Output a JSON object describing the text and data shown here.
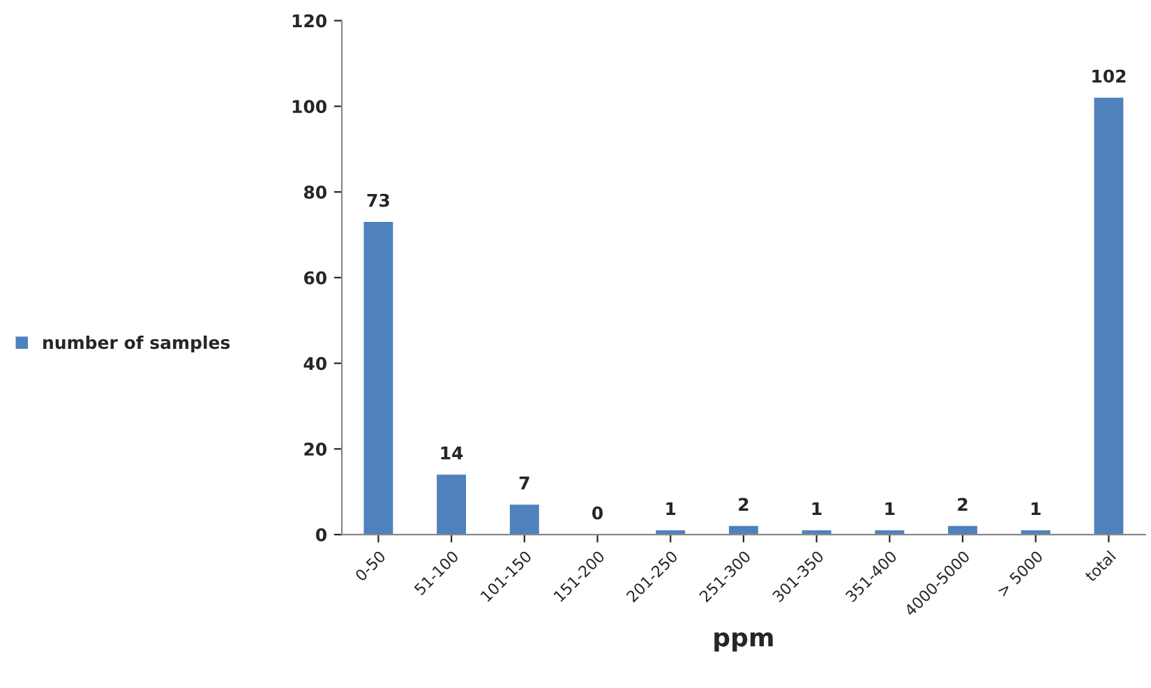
{
  "chart_data": {
    "type": "bar",
    "xlabel": "ppm",
    "categories": [
      "0-50",
      "51-100",
      "101-150",
      "151-200",
      "201-250",
      "251-300",
      "301-350",
      "351-400",
      "4000-5000",
      "> 5000",
      "total"
    ],
    "series": [
      {
        "name": "number of samples",
        "color": "#4f81bd",
        "values": [
          73,
          14,
          7,
          0,
          1,
          2,
          1,
          1,
          2,
          1,
          102
        ]
      }
    ],
    "ylim": [
      0,
      120
    ],
    "yticks": [
      0,
      20,
      40,
      60,
      80,
      100,
      120
    ],
    "grid": false,
    "legend": "left",
    "data_labels": true
  }
}
